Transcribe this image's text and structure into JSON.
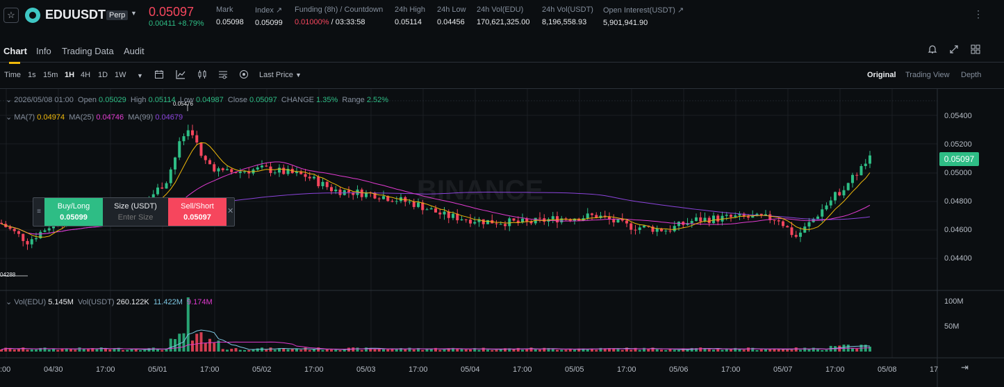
{
  "header": {
    "symbol": "EDUUSDT",
    "badge": "Perp",
    "last_price": "0.05097",
    "change": "0.00411 +8.79%",
    "stats": [
      {
        "label": "Mark",
        "value": "0.05098"
      },
      {
        "label": "Index ↗",
        "value": "0.05099"
      },
      {
        "label": "Funding (8h) / Countdown",
        "value_red": "0.01000%",
        "value": " / 03:33:58"
      },
      {
        "label": "24h High",
        "value": "0.05114"
      },
      {
        "label": "24h Low",
        "value": "0.04456"
      },
      {
        "label": "24h Vol(EDU)",
        "value": "170,621,325.00"
      },
      {
        "label": "24h Vol(USDT)",
        "value": "8,196,558.93"
      },
      {
        "label": "Open Interest(USDT) ↗",
        "value": "5,901,941.90"
      }
    ]
  },
  "tabs": [
    "Chart",
    "Info",
    "Trading Data",
    "Audit"
  ],
  "toolbar": {
    "intervals": [
      "Time",
      "1s",
      "15m",
      "1H",
      "4H",
      "1D",
      "1W"
    ],
    "active_interval": "1H",
    "price_type": "Last Price",
    "views": [
      "Original",
      "Trading View",
      "Depth"
    ]
  },
  "ohlc": {
    "date": "2026/05/08 01:00",
    "open_label": "Open",
    "open": "0.05029",
    "high_label": "High",
    "high": "0.05114",
    "low_label": "Low",
    "low": "0.04987",
    "close_label": "Close",
    "close": "0.05097",
    "change_label": "CHANGE",
    "change": "1.35%",
    "range_label": "Range",
    "range": "2.52%"
  },
  "ma": {
    "ma7_label": "MA(7)",
    "ma7": "0.04974",
    "ma25_label": "MA(25)",
    "ma25": "0.04746",
    "ma99_label": "MA(99)",
    "ma99": "0.04679"
  },
  "vol": {
    "edu_label": "Vol(EDU)",
    "edu": "5.145M",
    "usdt_label": "Vol(USDT)",
    "usdt": "260.122K",
    "ma1": "11.422M",
    "ma2": "9.174M"
  },
  "trade_panel": {
    "buy_label": "Buy/Long",
    "buy_price": "0.05099",
    "size_label": "Size (USDT)",
    "size_placeholder": "Enter Size",
    "sell_label": "Sell/Short",
    "sell_price": "0.05097"
  },
  "watermark": "BINANCE",
  "price_axis": [
    "0.05400",
    "0.05200",
    "0.05000",
    "0.04800",
    "0.04600",
    "0.04400"
  ],
  "price_tag": "0.05097",
  "volume_axis": [
    "100M",
    "50M"
  ],
  "time_axis": [
    ":00",
    "04/30",
    "17:00",
    "05/01",
    "17:00",
    "05/02",
    "17:00",
    "05/03",
    "17:00",
    "05/04",
    "17:00",
    "05/05",
    "17:00",
    "05/06",
    "17:00",
    "05/07",
    "17:00",
    "05/08",
    "17"
  ],
  "high_marker": "0.05476",
  "low_marker": "04288",
  "colors": {
    "up": "#2ebd85",
    "down": "#f6465d",
    "ma7": "#f0b90b",
    "ma25": "#e23bd1",
    "ma99": "#8c44dc",
    "accent": "#f0b90b"
  }
}
